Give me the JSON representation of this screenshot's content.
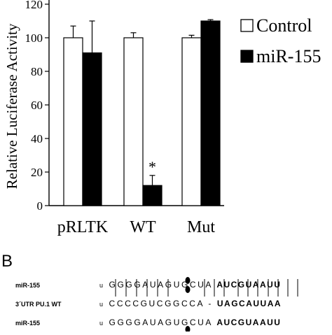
{
  "chart_data": {
    "type": "bar",
    "categories": [
      "pRLTK",
      "WT",
      "Mut"
    ],
    "series": [
      {
        "name": "Control",
        "values": [
          100,
          100,
          100
        ],
        "errors": [
          7,
          3,
          1.5
        ],
        "color": "#ffffff"
      },
      {
        "name": "miR-155",
        "values": [
          91,
          12,
          110
        ],
        "errors": [
          19,
          6,
          0.8
        ],
        "color": "#000000"
      }
    ],
    "ylabel": "Relative Luciferase Activity",
    "ylim": [
      0,
      120
    ],
    "yticks": [
      0,
      20,
      40,
      60,
      80,
      100,
      120
    ],
    "annotations": [
      {
        "category": "WT",
        "series": "miR-155",
        "text": "*"
      }
    ],
    "grid": false,
    "legend_position": "right"
  },
  "panel_b": {
    "letter": "B",
    "rows": [
      {
        "label": "miR-155",
        "prefix": "u",
        "plain": "GGGGAUAGUGCUA",
        "bold": "AUCGUAAUU"
      },
      {
        "label": "3´UTR PU.1 WT",
        "prefix": "u",
        "plain": "CCCCGUCGGCCA - ",
        "bold": "UAGCAUUAA"
      },
      {
        "label": "miR-155",
        "prefix": "u",
        "plain": "GGGGAUAGUGCUA",
        "bold": "AUCGUAAUU"
      }
    ]
  }
}
